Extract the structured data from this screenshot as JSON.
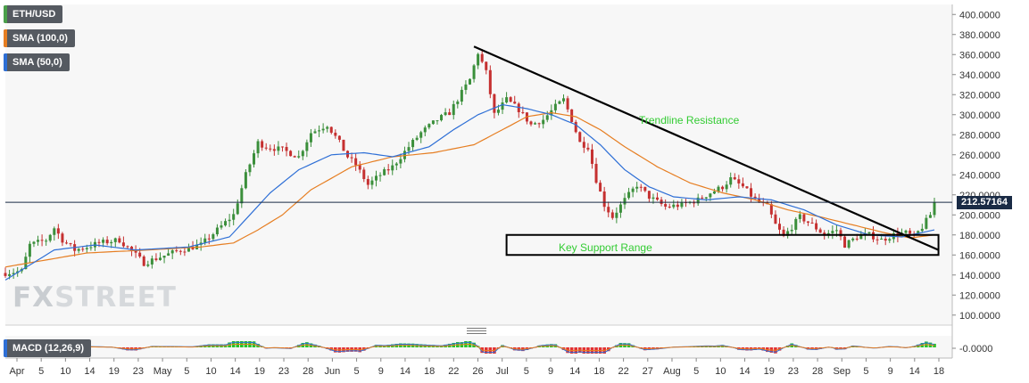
{
  "legend": {
    "symbol": "ETH/USD",
    "sma_100": "SMA (100,0)",
    "sma_50": "SMA (50,0)",
    "macd": "MACD (12,26,9)"
  },
  "colors": {
    "up": "#3b8f3b",
    "down": "#c53030",
    "sma_100": "#e67e22",
    "sma_50": "#2e6fd6",
    "macd_up": "#27c227",
    "macd_down": "#e23030",
    "annotation": "#33cc33",
    "current_price_bg": "#1a2b45"
  },
  "logo": {
    "part1": "FX",
    "part2": "STREET"
  },
  "current_price": "212.57164",
  "annotations": {
    "trendline_label": "Trendline Resistance",
    "support_label": "Key Support Range"
  },
  "chart_data": {
    "type": "candlestick",
    "price_axis": {
      "ticks": [
        "400.0000",
        "380.0000",
        "360.0000",
        "340.0000",
        "320.0000",
        "300.0000",
        "280.0000",
        "260.0000",
        "240.0000",
        "220.0000",
        "200.0000",
        "180.0000",
        "160.0000",
        "140.0000",
        "120.0000",
        "100.0000"
      ],
      "range": [
        90,
        410
      ]
    },
    "macd_axis": {
      "ticks": [
        "-0.0000"
      ]
    },
    "x_labels": [
      "Apr",
      "5",
      "10",
      "14",
      "19",
      "23",
      "May",
      "5",
      "10",
      "14",
      "19",
      "23",
      "28",
      "Jun",
      "5",
      "9",
      "14",
      "18",
      "22",
      "26",
      "Jul",
      "5",
      "9",
      "14",
      "18",
      "22",
      "27",
      "Aug",
      "5",
      "10",
      "14",
      "19",
      "23",
      "28",
      "Sep",
      "5",
      "9",
      "14",
      "18"
    ],
    "price_path": [
      [
        0,
        142
      ],
      [
        4,
        144
      ],
      [
        6,
        170
      ],
      [
        10,
        175
      ],
      [
        12,
        187
      ],
      [
        14,
        175
      ],
      [
        17,
        165
      ],
      [
        20,
        168
      ],
      [
        23,
        172
      ],
      [
        28,
        175
      ],
      [
        32,
        160
      ],
      [
        34,
        152
      ],
      [
        38,
        158
      ],
      [
        43,
        165
      ],
      [
        48,
        170
      ],
      [
        52,
        185
      ],
      [
        56,
        200
      ],
      [
        59,
        240
      ],
      [
        62,
        272
      ],
      [
        64,
        268
      ],
      [
        68,
        265
      ],
      [
        72,
        258
      ],
      [
        75,
        282
      ],
      [
        79,
        290
      ],
      [
        82,
        272
      ],
      [
        84,
        258
      ],
      [
        86,
        250
      ],
      [
        89,
        230
      ],
      [
        92,
        240
      ],
      [
        95,
        248
      ],
      [
        99,
        268
      ],
      [
        102,
        282
      ],
      [
        106,
        295
      ],
      [
        109,
        302
      ],
      [
        112,
        322
      ],
      [
        114,
        335
      ],
      [
        116,
        362
      ],
      [
        118,
        342
      ],
      [
        120,
        300
      ],
      [
        123,
        315
      ],
      [
        126,
        305
      ],
      [
        129,
        290
      ],
      [
        132,
        295
      ],
      [
        135,
        308
      ],
      [
        137,
        315
      ],
      [
        139,
        295
      ],
      [
        141,
        272
      ],
      [
        143,
        268
      ],
      [
        145,
        235
      ],
      [
        147,
        210
      ],
      [
        149,
        198
      ],
      [
        152,
        215
      ],
      [
        155,
        230
      ],
      [
        158,
        218
      ],
      [
        162,
        208
      ],
      [
        166,
        210
      ],
      [
        170,
        215
      ],
      [
        173,
        222
      ],
      [
        176,
        228
      ],
      [
        178,
        236
      ],
      [
        181,
        228
      ],
      [
        184,
        215
      ],
      [
        187,
        208
      ],
      [
        189,
        190
      ],
      [
        191,
        178
      ],
      [
        195,
        198
      ],
      [
        198,
        190
      ],
      [
        201,
        180
      ],
      [
        204,
        185
      ],
      [
        206,
        170
      ],
      [
        209,
        178
      ],
      [
        212,
        180
      ],
      [
        215,
        175
      ],
      [
        218,
        180
      ],
      [
        221,
        182
      ],
      [
        223,
        178
      ],
      [
        225,
        188
      ],
      [
        227,
        200
      ],
      [
        228,
        212
      ]
    ],
    "sma_50": [
      [
        0,
        135
      ],
      [
        12,
        165
      ],
      [
        22,
        170
      ],
      [
        32,
        165
      ],
      [
        45,
        168
      ],
      [
        55,
        178
      ],
      [
        60,
        200
      ],
      [
        65,
        222
      ],
      [
        72,
        245
      ],
      [
        80,
        260
      ],
      [
        88,
        262
      ],
      [
        95,
        258
      ],
      [
        104,
        268
      ],
      [
        110,
        285
      ],
      [
        116,
        300
      ],
      [
        122,
        310
      ],
      [
        128,
        306
      ],
      [
        134,
        300
      ],
      [
        140,
        290
      ],
      [
        146,
        270
      ],
      [
        152,
        245
      ],
      [
        158,
        228
      ],
      [
        164,
        218
      ],
      [
        172,
        215
      ],
      [
        180,
        218
      ],
      [
        188,
        215
      ],
      [
        196,
        205
      ],
      [
        204,
        190
      ],
      [
        212,
        180
      ],
      [
        220,
        178
      ],
      [
        228,
        185
      ]
    ],
    "sma_100": [
      [
        0,
        148
      ],
      [
        10,
        155
      ],
      [
        20,
        162
      ],
      [
        35,
        165
      ],
      [
        48,
        168
      ],
      [
        56,
        172
      ],
      [
        62,
        185
      ],
      [
        68,
        200
      ],
      [
        75,
        225
      ],
      [
        85,
        248
      ],
      [
        95,
        258
      ],
      [
        105,
        262
      ],
      [
        115,
        270
      ],
      [
        122,
        285
      ],
      [
        128,
        298
      ],
      [
        134,
        302
      ],
      [
        140,
        298
      ],
      [
        146,
        285
      ],
      [
        152,
        268
      ],
      [
        160,
        248
      ],
      [
        168,
        232
      ],
      [
        176,
        222
      ],
      [
        184,
        215
      ],
      [
        192,
        205
      ],
      [
        200,
        198
      ],
      [
        208,
        190
      ],
      [
        216,
        182
      ],
      [
        222,
        177
      ],
      [
        228,
        180
      ]
    ],
    "trendline": {
      "start": [
        115,
        368
      ],
      "end": [
        229,
        165
      ]
    },
    "support_range": {
      "from_x": 123,
      "to_x": 229,
      "low": 160,
      "high": 180
    }
  }
}
